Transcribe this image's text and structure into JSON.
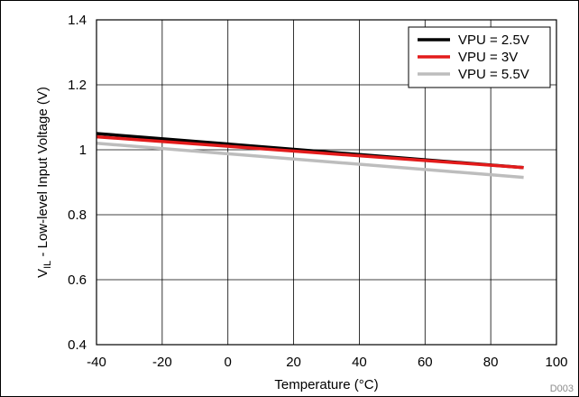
{
  "chart_data": {
    "type": "line",
    "xlabel": "Temperature (°C)",
    "ylabel": {
      "prefix": "V",
      "subscript": "IL",
      "suffix": " - Low-level Input Voltage (V)"
    },
    "xlim": [
      -40,
      100
    ],
    "ylim": [
      0.4,
      1.4
    ],
    "x_ticks": [
      -40,
      -20,
      0,
      20,
      40,
      60,
      80,
      100
    ],
    "x_tick_labels": [
      "-40",
      "-20",
      "0",
      "20",
      "40",
      "60",
      "80",
      "100"
    ],
    "y_ticks": [
      0.4,
      0.6,
      0.8,
      1.0,
      1.2,
      1.4
    ],
    "y_tick_labels": [
      "0.4",
      "0.6",
      "0.8",
      "1",
      "1.2",
      "1.4"
    ],
    "grid": true,
    "legend_position": "top-right",
    "figure_id": "D003",
    "series": [
      {
        "name": "VPU = 2.5V",
        "color": "#000000",
        "x": [
          -40,
          90
        ],
        "y": [
          1.05,
          0.945
        ]
      },
      {
        "name": "VPU = 3V",
        "color": "#e31b1b",
        "x": [
          -40,
          90
        ],
        "y": [
          1.04,
          0.945
        ]
      },
      {
        "name": "VPU = 5.5V",
        "color": "#bdbdbd",
        "x": [
          -40,
          90
        ],
        "y": [
          1.02,
          0.915
        ]
      }
    ]
  }
}
